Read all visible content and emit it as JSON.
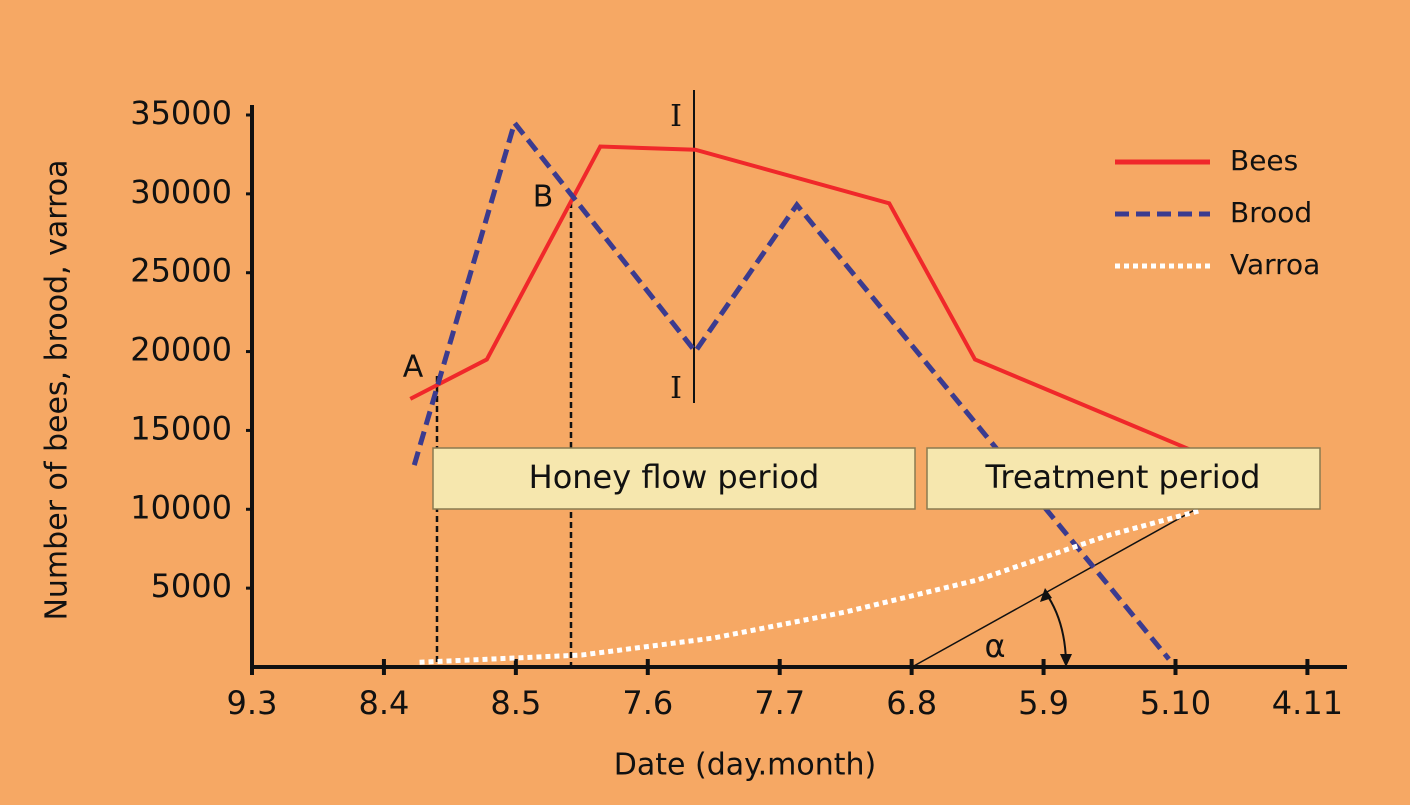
{
  "chart_data": {
    "type": "line",
    "xlabel": "Date (day.month)",
    "ylabel": "Number of bees, brood, varroa",
    "xlim": [
      0,
      8.3
    ],
    "xticks": [
      {
        "value": 0,
        "label": "9.3"
      },
      {
        "value": 1,
        "label": "8.4"
      },
      {
        "value": 2,
        "label": "8.5"
      },
      {
        "value": 3,
        "label": "7.6"
      },
      {
        "value": 4,
        "label": "7.7"
      },
      {
        "value": 5,
        "label": "6.8"
      },
      {
        "value": 6,
        "label": "5.9"
      },
      {
        "value": 7,
        "label": "5.10"
      },
      {
        "value": 8,
        "label": "4.11"
      }
    ],
    "ylim": [
      0,
      35000
    ],
    "yticks": [
      5000,
      10000,
      15000,
      20000,
      25000,
      30000,
      35000
    ],
    "legend": "upper right",
    "series": [
      {
        "name": "Bees",
        "color": "#f0282a",
        "style": "solid",
        "x": [
          1.2,
          1.78,
          2.64,
          3.36,
          4.83,
          5.48,
          7.22
        ],
        "values": [
          17000,
          19500,
          33000,
          32800,
          29400,
          19500,
          13400
        ]
      },
      {
        "name": "Brood",
        "color": "#3b3b8f",
        "style": "dashed",
        "x": [
          1.23,
          1.99,
          3.36,
          4.13,
          6.95
        ],
        "values": [
          12800,
          34500,
          20000,
          29300,
          500
        ]
      },
      {
        "name": "Varroa",
        "color": "#ffffff",
        "style": "dotted",
        "x": [
          1.27,
          2.5,
          3.5,
          4.5,
          5.5,
          6.5,
          7.2
        ],
        "values": [
          300,
          760,
          1840,
          3490,
          5520,
          8370,
          9950
        ]
      }
    ],
    "annotations": [
      "A",
      "B",
      "I",
      "I",
      "α",
      "Honey flow period",
      "Treatment period"
    ]
  }
}
